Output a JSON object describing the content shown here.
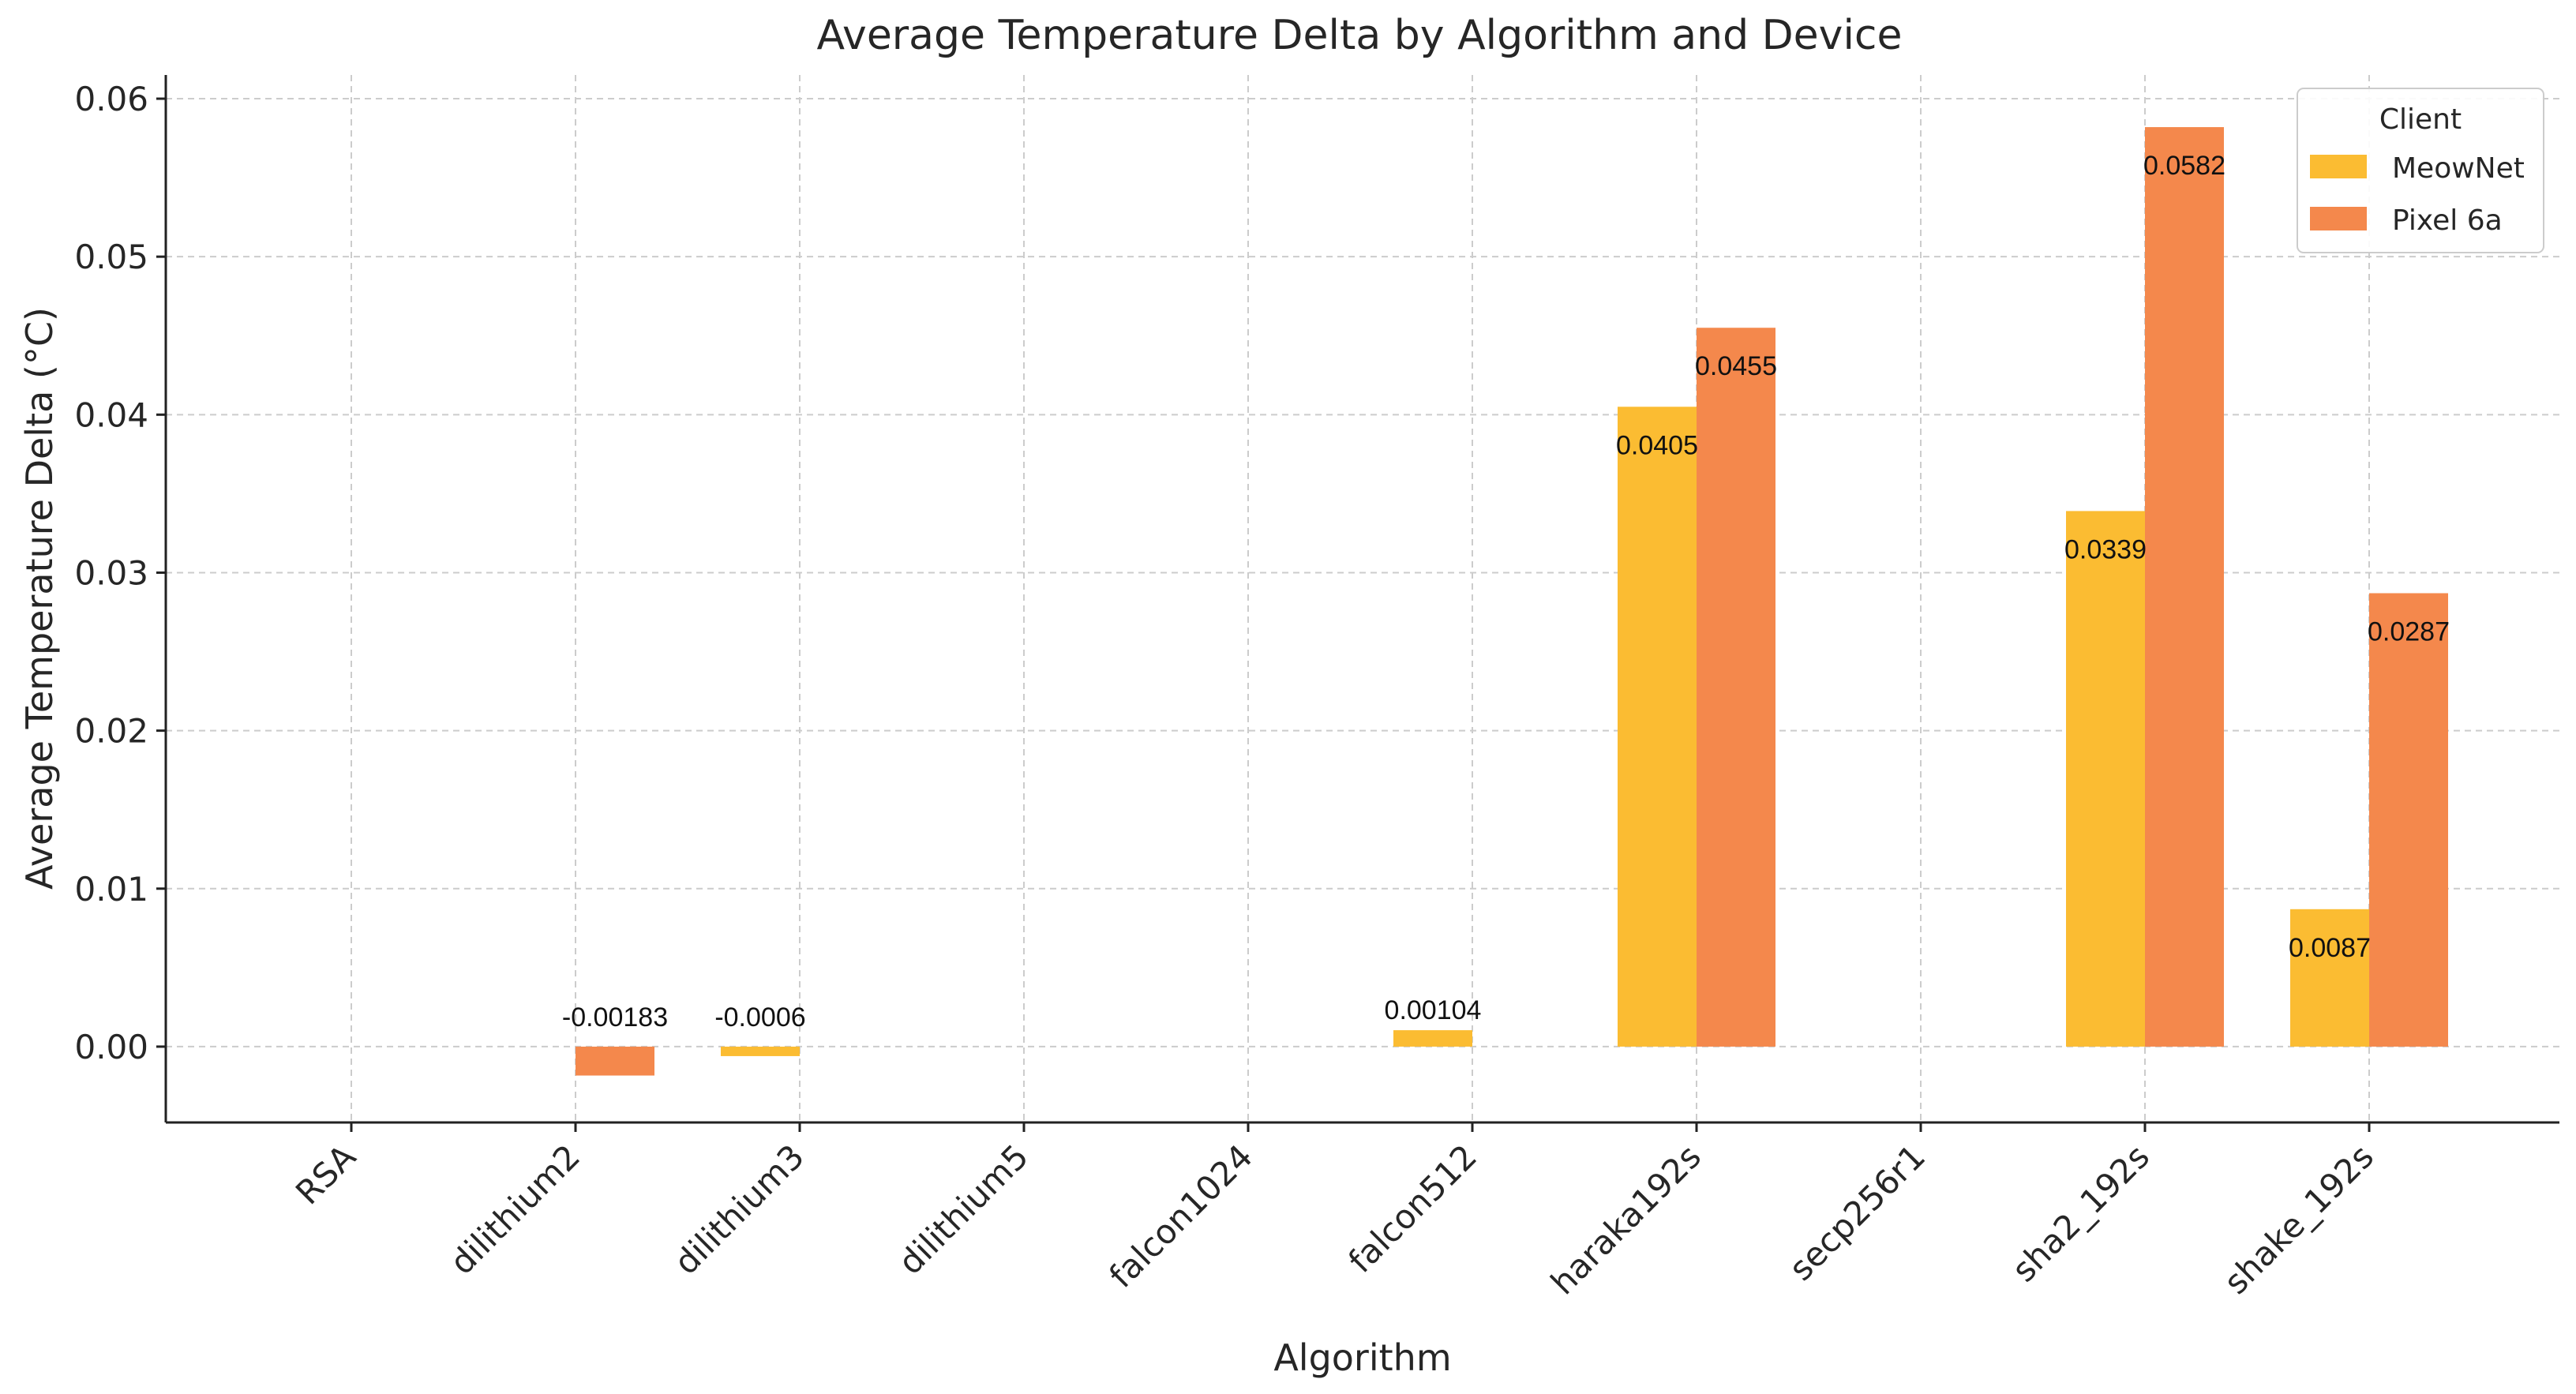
{
  "chart_data": {
    "type": "bar",
    "title": "Average Temperature Delta by Algorithm and Device",
    "xlabel": "Algorithm",
    "ylabel": "Average Temperature Delta (°C)",
    "ylim": [
      -0.0048,
      0.0615
    ],
    "yticks": [
      0.0,
      0.01,
      0.02,
      0.03,
      0.04,
      0.05,
      0.06
    ],
    "ytick_labels": [
      "0.00",
      "0.01",
      "0.02",
      "0.03",
      "0.04",
      "0.05",
      "0.06"
    ],
    "grid": true,
    "categories": [
      "RSA",
      "dilithium2",
      "dilithium3",
      "dilithium5",
      "falcon1024",
      "falcon512",
      "haraka192s",
      "secp256r1",
      "sha2_192s",
      "shake_192s"
    ],
    "series": [
      {
        "name": "MeowNet",
        "color": "#FBBC32",
        "values": [
          null,
          null,
          -0.0006,
          null,
          null,
          0.00104,
          0.0405,
          null,
          0.0339,
          0.0087
        ],
        "labels": [
          null,
          null,
          "-0.0006",
          null,
          null,
          "0.00104",
          "0.0405",
          null,
          "0.0339",
          "0.0087"
        ]
      },
      {
        "name": "Pixel 6a",
        "color": "#F4884C",
        "values": [
          null,
          -0.00183,
          null,
          null,
          null,
          null,
          0.0455,
          null,
          0.0582,
          0.0287
        ],
        "labels": [
          null,
          "-0.00183",
          null,
          null,
          null,
          null,
          "0.0455",
          null,
          "0.0582",
          "0.0287"
        ]
      }
    ],
    "legend": {
      "title": "Client",
      "position": "top-right"
    }
  }
}
